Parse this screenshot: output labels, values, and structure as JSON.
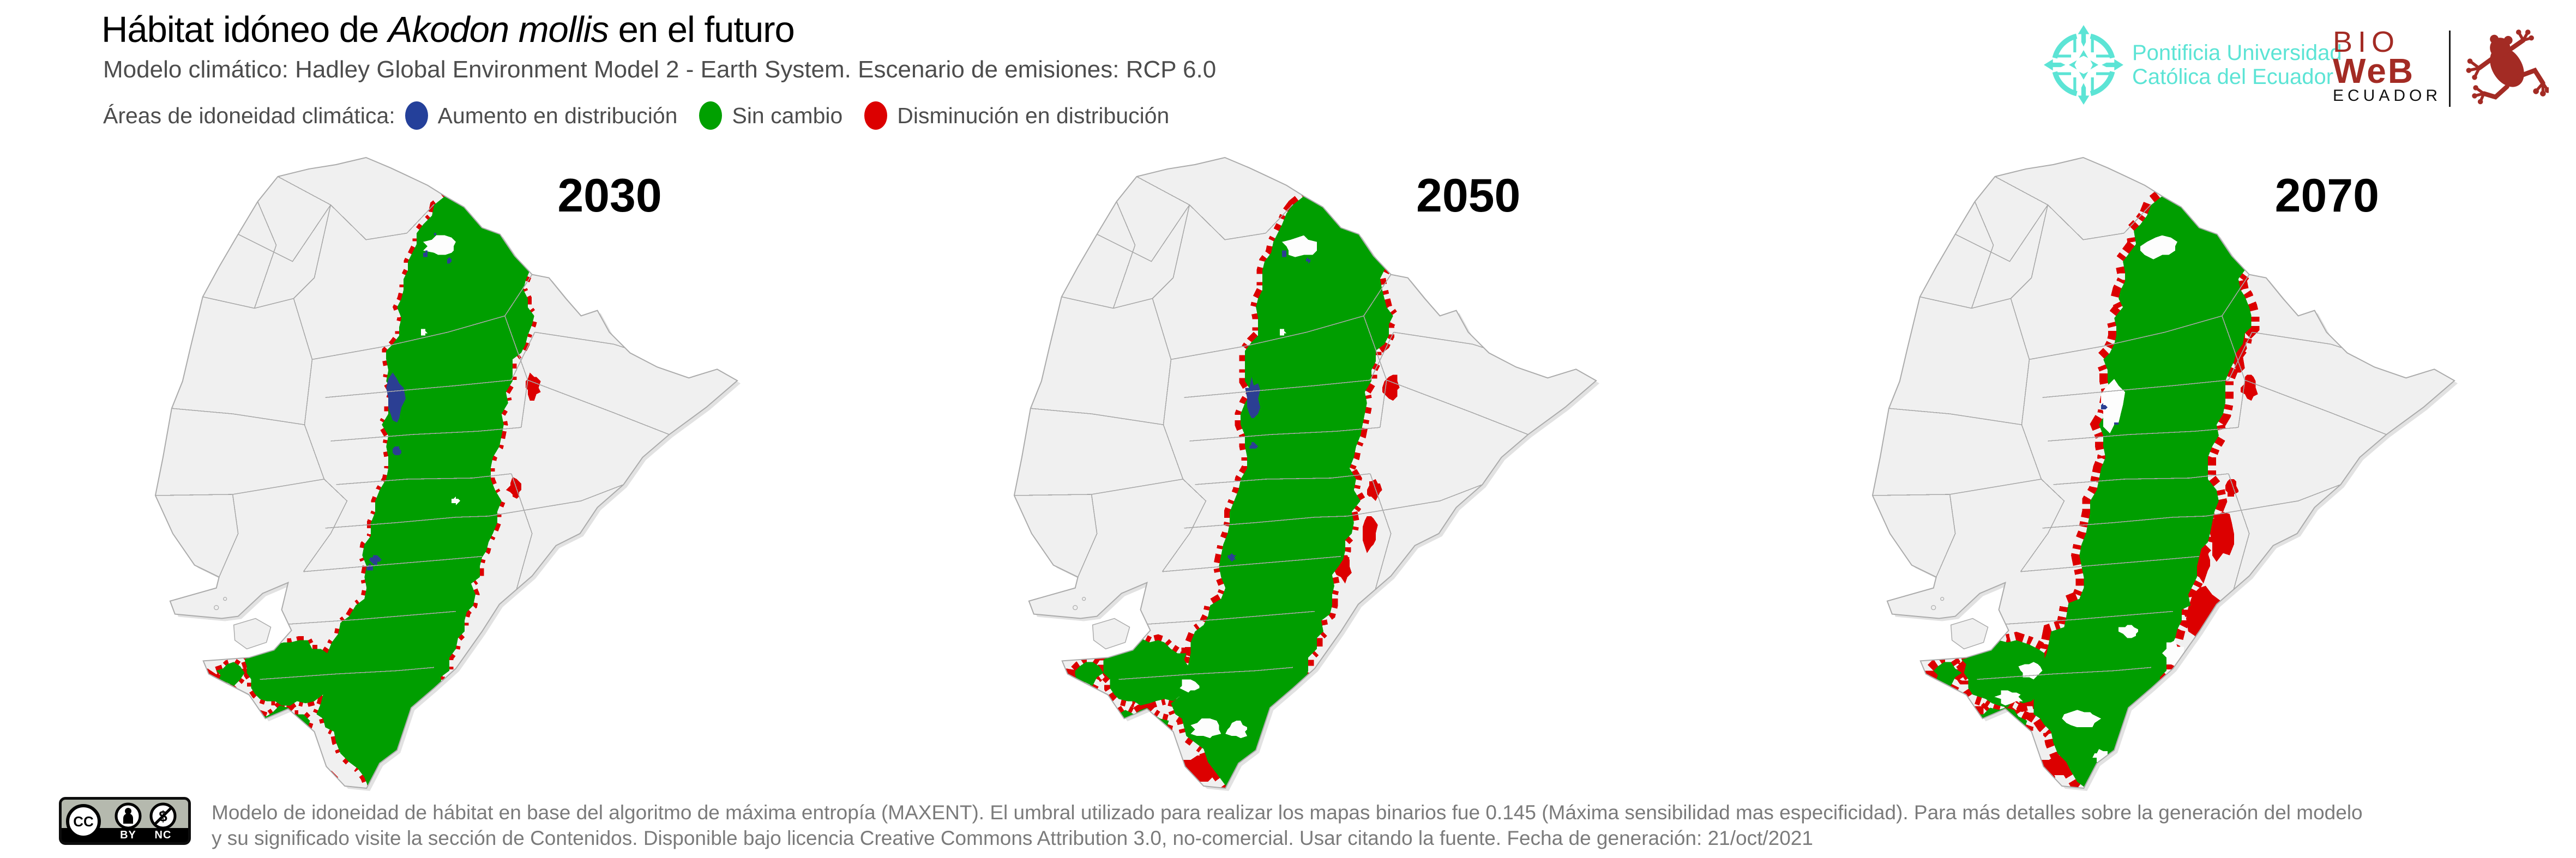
{
  "header": {
    "title_prefix": "Hábitat idóneo de ",
    "title_species": "Akodon mollis",
    "title_suffix": " en el futuro",
    "subtitle": "Modelo climático: Hadley Global Environment Model 2 - Earth System. Escenario de emisiones: RCP 6.0",
    "legend_label": "Áreas de idoneidad climática:",
    "legend_items": [
      {
        "label": "Aumento en distribución",
        "color": "#24409a"
      },
      {
        "label": "Sin cambio",
        "color": "#00a000"
      },
      {
        "label": "Disminución en distribución",
        "color": "#dc0000"
      }
    ]
  },
  "logos": {
    "puce": {
      "line1": "Pontificia Universidad",
      "line2": "Católica del Ecuador",
      "color": "#5ce4d5"
    },
    "bioweb": {
      "bio": "BIO",
      "web": "WeB",
      "country": "ECUADOR",
      "accent": "#a32b24"
    }
  },
  "panels": [
    {
      "year": "2030"
    },
    {
      "year": "2050"
    },
    {
      "year": "2070"
    }
  ],
  "map_colors": {
    "no_change_green": "#009e00",
    "decrease_red": "#dc0000",
    "increase_blue": "#2b3f93",
    "land_fill": "#f0f0f0",
    "land_stroke": "#ababab",
    "province_stroke": "#a8a8a8",
    "shadow": "#e2e2e2",
    "hole_fill": "#fdfdfd"
  },
  "footer": {
    "license_badge": {
      "cc": "CC",
      "by": "BY",
      "nc": "NC",
      "nc_symbol": "$"
    },
    "text_line1": "Modelo de idoneidad de hábitat en base del algoritmo de máxima entropía (MAXENT). El umbral utilizado para realizar los mapas binarios fue 0.145 (Máxima sensibilidad mas especificidad). Para más detalles sobre la generación del modelo",
    "text_line2": "y su significado visite la sección de Contenidos. Disponible bajo licencia Creative Commons Attribution 3.0, no-comercial. Usar citando la fuente. Fecha de generación: 21/oct/2021"
  }
}
